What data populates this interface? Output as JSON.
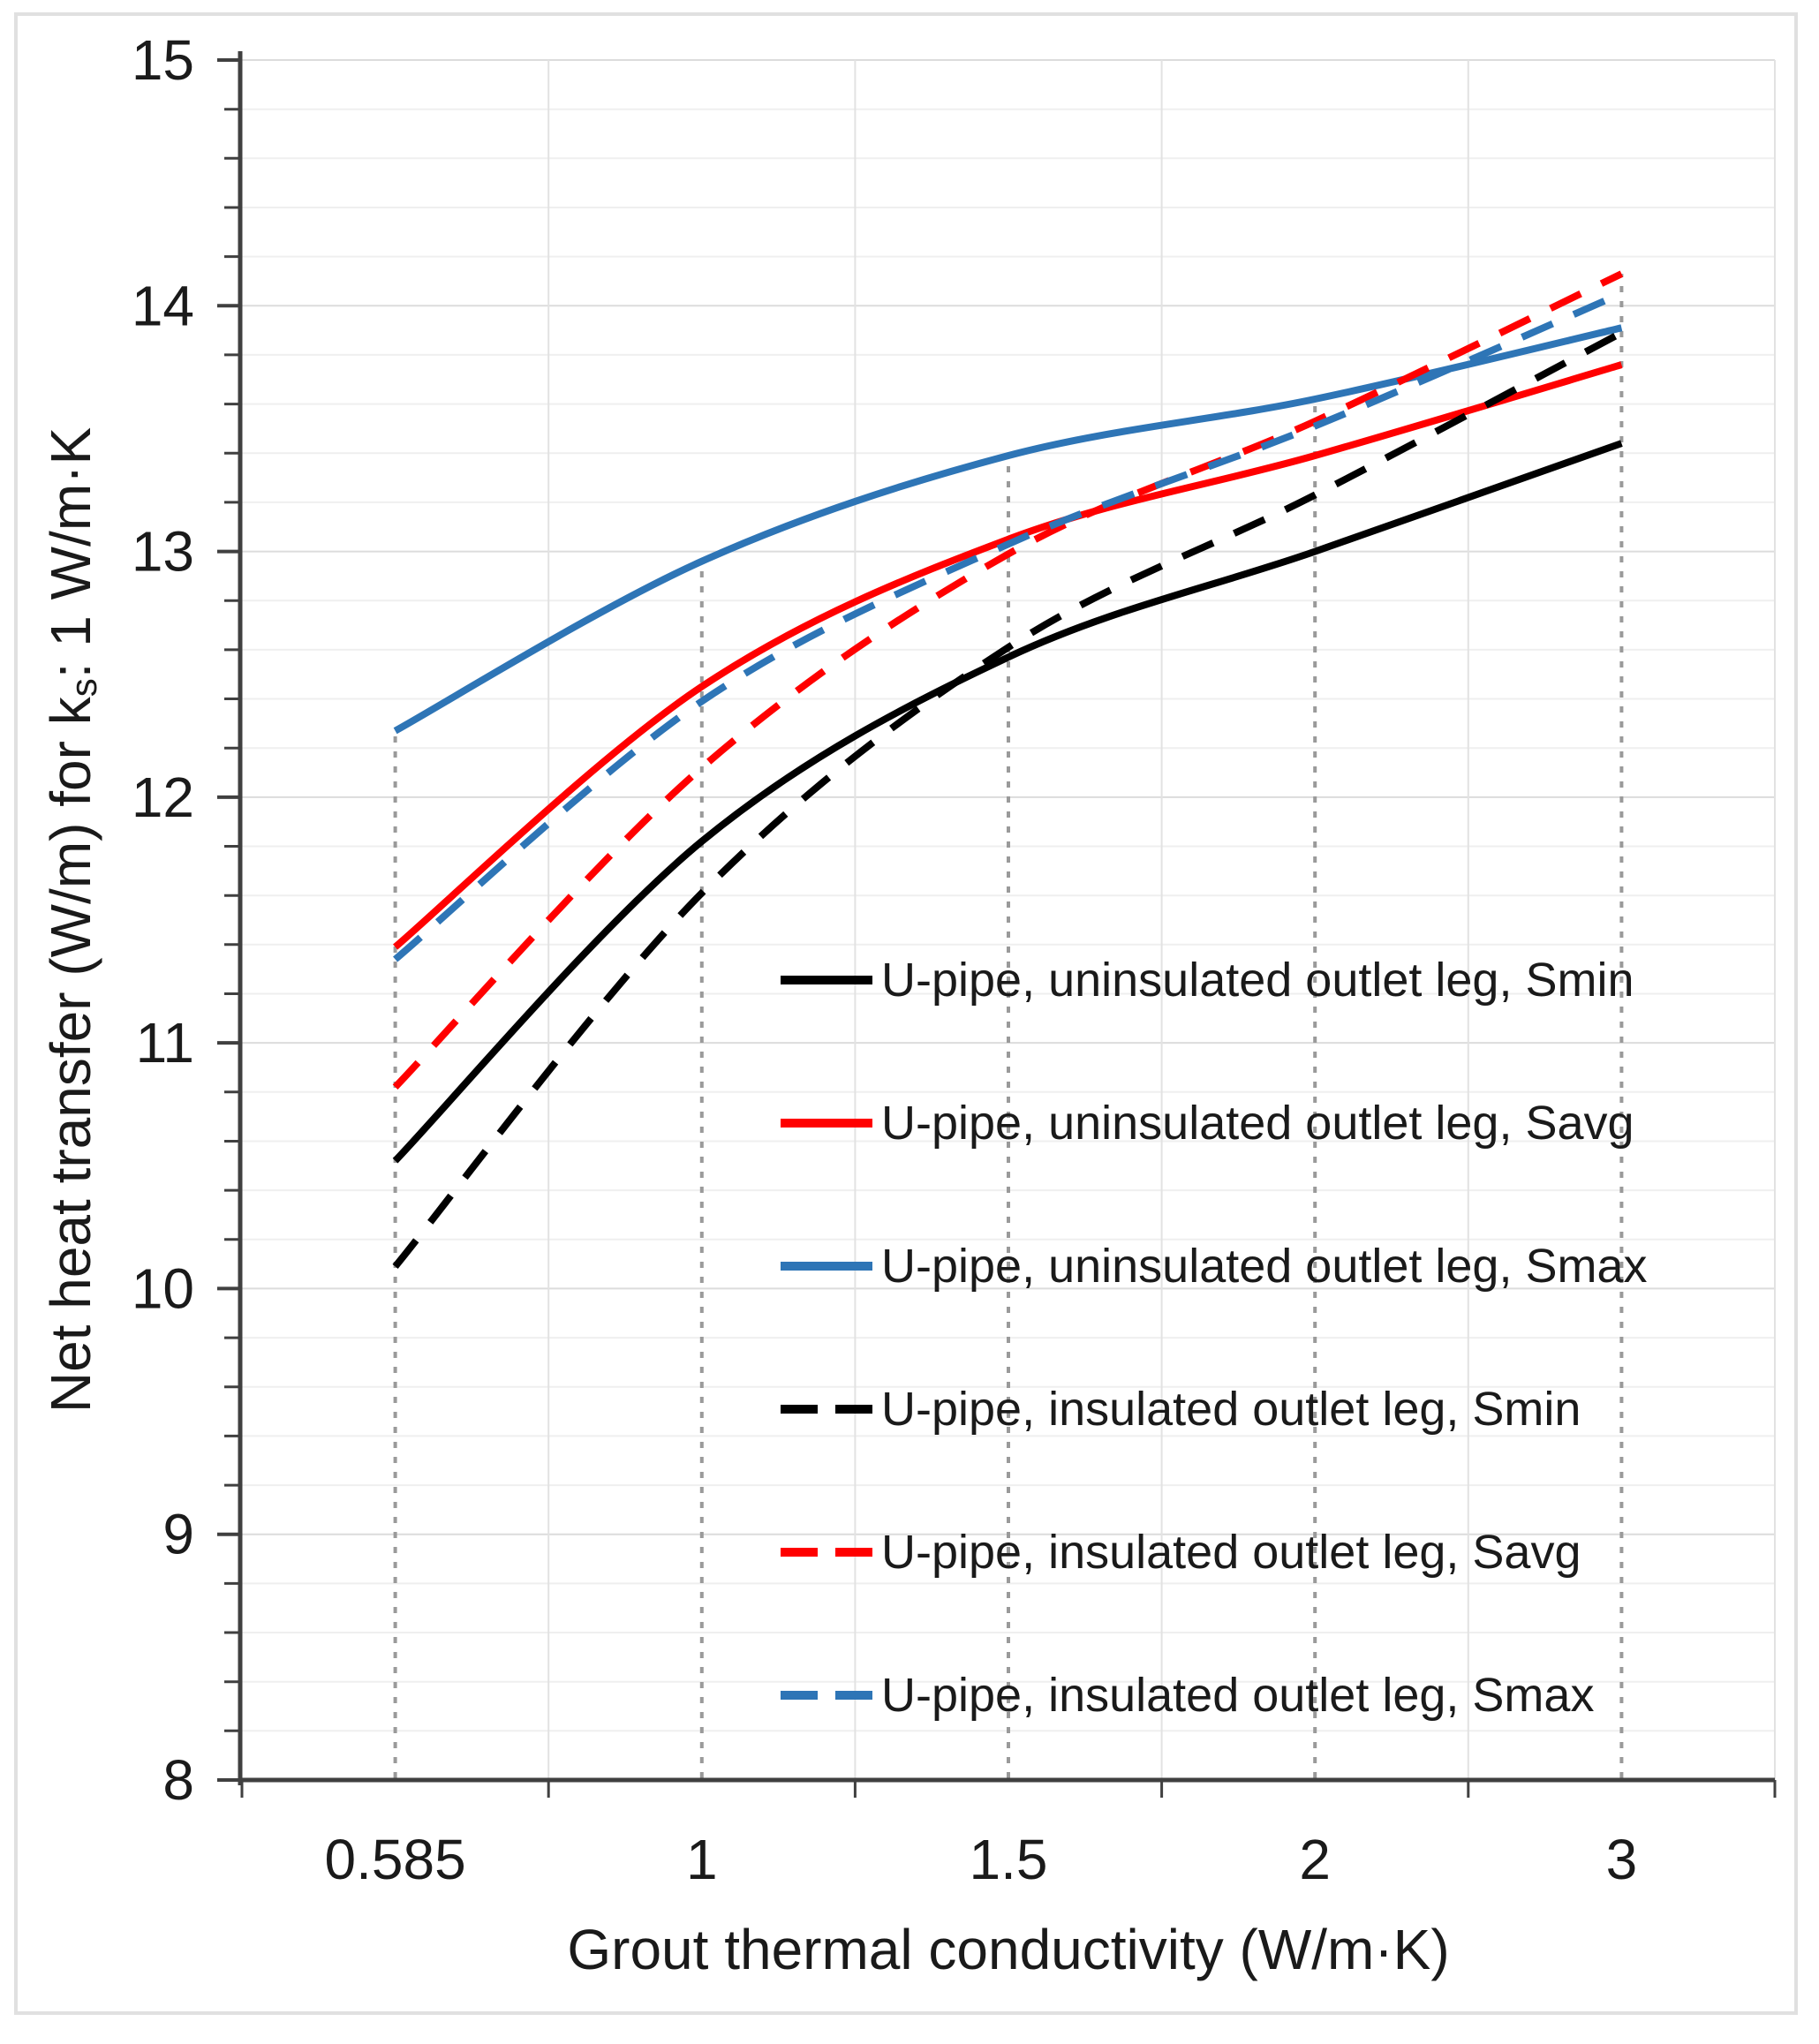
{
  "figure": {
    "background": "#ffffff",
    "border_color": "#e0e0e0"
  },
  "chart_data": {
    "type": "line",
    "title": "",
    "xlabel": "Grout thermal conductivity (W/m·K)",
    "ylabel": "Net heat transfer (W/m) for kₛ: 1 W/m·K",
    "ylabel_parts": {
      "pre": "Net heat transfer (W/m) for k",
      "sub": "s",
      "post": ": 1 W/m·K"
    },
    "categories": [
      "0.585",
      "1",
      "1.5",
      "2",
      "3"
    ],
    "ylim": [
      8,
      15
    ],
    "y_major_step": 1,
    "y_minor_step": 0.2,
    "x_axis_type": "category",
    "grid": "horizontal every 0.2 (darker at integers), vertical at category boundaries",
    "legend_position": "inside plot, right-center, no border",
    "series": [
      {
        "name": "U-pipe, uninsulated outlet leg, Smin",
        "color": "#000000",
        "style": "solid",
        "values": [
          10.52,
          11.82,
          12.57,
          13.0,
          13.44
        ]
      },
      {
        "name": "U-pipe, uninsulated outlet leg, Savg",
        "color": "#ff0000",
        "style": "solid",
        "values": [
          11.39,
          12.45,
          13.05,
          13.39,
          13.76
        ]
      },
      {
        "name": "U-pipe, uninsulated outlet leg, Smax",
        "color": "#2e75b6",
        "style": "solid",
        "values": [
          12.27,
          12.96,
          13.39,
          13.62,
          13.91
        ]
      },
      {
        "name": "U-pipe, insulated outlet leg, Smin",
        "color": "#000000",
        "style": "dashed",
        "sample_dash": "42 20",
        "values": [
          10.09,
          11.61,
          12.61,
          13.23,
          13.89
        ]
      },
      {
        "name": "U-pipe, insulated outlet leg, Savg",
        "color": "#ff0000",
        "style": "dashed",
        "sample_dash": "42 20",
        "values": [
          10.82,
          12.12,
          12.99,
          13.53,
          14.13
        ]
      },
      {
        "name": "U-pipe, insulated outlet leg, Smax",
        "color": "#2e75b6",
        "style": "dashed",
        "sample_dash": "42 20",
        "values": [
          11.34,
          12.39,
          13.03,
          13.51,
          14.05
        ]
      }
    ],
    "droplines": {
      "present": true,
      "style": "dotted",
      "color": "#9a9a9a",
      "extent": "from x-axis up to highest series value at each category",
      "tops": [
        12.27,
        12.96,
        13.39,
        13.62,
        14.13
      ]
    },
    "colors": {
      "axis": "#404040",
      "text": "#1a1a1a",
      "grid_major": "#dcdcdc",
      "grid_minor": "#efefef",
      "grid_vertical": "#e2e2e2"
    }
  }
}
